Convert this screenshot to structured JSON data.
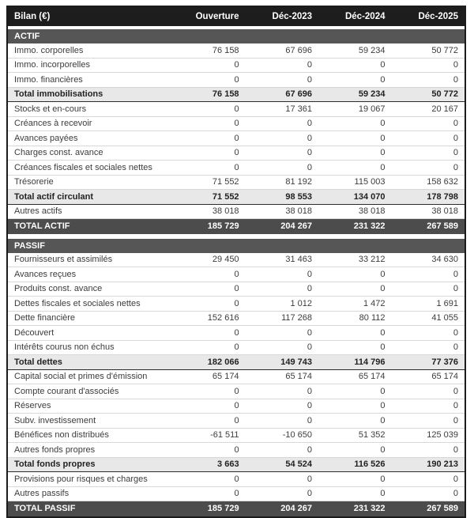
{
  "table": {
    "header": {
      "label": "Bilan (€)",
      "columns": [
        "Ouverture",
        "Déc-2023",
        "Déc-2024",
        "Déc-2025"
      ]
    },
    "sections": [
      {
        "title": "ACTIF",
        "rows": [
          {
            "label": "Immo. corporelles",
            "style": "normal",
            "values": [
              "76 158",
              "67 696",
              "59 234",
              "50 772"
            ]
          },
          {
            "label": "Immo. incorporelles",
            "style": "normal",
            "values": [
              "0",
              "0",
              "0",
              "0"
            ]
          },
          {
            "label": "Immo. financières",
            "style": "normal",
            "values": [
              "0",
              "0",
              "0",
              "0"
            ]
          },
          {
            "label": "Total immobilisations",
            "style": "subtotal",
            "values": [
              "76 158",
              "67 696",
              "59 234",
              "50 772"
            ]
          },
          {
            "label": "Stocks et en-cours",
            "style": "normal",
            "values": [
              "0",
              "17 361",
              "19 067",
              "20 167"
            ]
          },
          {
            "label": "Créances à recevoir",
            "style": "normal",
            "values": [
              "0",
              "0",
              "0",
              "0"
            ]
          },
          {
            "label": "Avances payées",
            "style": "normal",
            "values": [
              "0",
              "0",
              "0",
              "0"
            ]
          },
          {
            "label": "Charges const. avance",
            "style": "normal",
            "values": [
              "0",
              "0",
              "0",
              "0"
            ]
          },
          {
            "label": "Créances fiscales et sociales nettes",
            "style": "normal",
            "values": [
              "0",
              "0",
              "0",
              "0"
            ]
          },
          {
            "label": "Trésorerie",
            "style": "normal",
            "values": [
              "71 552",
              "81 192",
              "115 003",
              "158 632"
            ]
          },
          {
            "label": "Total actif circulant",
            "style": "subtotal",
            "values": [
              "71 552",
              "98 553",
              "134 070",
              "178 798"
            ]
          },
          {
            "label": "Autres actifs",
            "style": "normal",
            "values": [
              "38 018",
              "38 018",
              "38 018",
              "38 018"
            ]
          },
          {
            "label": "TOTAL ACTIF",
            "style": "total",
            "values": [
              "185 729",
              "204 267",
              "231 322",
              "267 589"
            ]
          }
        ]
      },
      {
        "title": "PASSIF",
        "rows": [
          {
            "label": "Fournisseurs et assimilés",
            "style": "normal",
            "values": [
              "29 450",
              "31 463",
              "33 212",
              "34 630"
            ]
          },
          {
            "label": "Avances reçues",
            "style": "normal",
            "values": [
              "0",
              "0",
              "0",
              "0"
            ]
          },
          {
            "label": "Produits const. avance",
            "style": "normal",
            "values": [
              "0",
              "0",
              "0",
              "0"
            ]
          },
          {
            "label": "Dettes fiscales et sociales nettes",
            "style": "normal",
            "values": [
              "0",
              "1 012",
              "1 472",
              "1 691"
            ]
          },
          {
            "label": "Dette financière",
            "style": "normal",
            "values": [
              "152 616",
              "117 268",
              "80 112",
              "41 055"
            ]
          },
          {
            "label": "Découvert",
            "style": "normal",
            "values": [
              "0",
              "0",
              "0",
              "0"
            ]
          },
          {
            "label": "Intérêts courus non échus",
            "style": "normal",
            "values": [
              "0",
              "0",
              "0",
              "0"
            ]
          },
          {
            "label": "Total dettes",
            "style": "subtotal",
            "values": [
              "182 066",
              "149 743",
              "114 796",
              "77 376"
            ]
          },
          {
            "label": "Capital social et primes d'émission",
            "style": "normal",
            "values": [
              "65 174",
              "65 174",
              "65 174",
              "65 174"
            ]
          },
          {
            "label": "Compte courant d'associés",
            "style": "normal",
            "values": [
              "0",
              "0",
              "0",
              "0"
            ]
          },
          {
            "label": "Réserves",
            "style": "normal",
            "values": [
              "0",
              "0",
              "0",
              "0"
            ]
          },
          {
            "label": "Subv. investissement",
            "style": "normal",
            "values": [
              "0",
              "0",
              "0",
              "0"
            ]
          },
          {
            "label": "Bénéfices non distribués",
            "style": "normal",
            "values": [
              "-61 511",
              "-10 650",
              "51 352",
              "125 039"
            ]
          },
          {
            "label": "Autres fonds propres",
            "style": "normal",
            "values": [
              "0",
              "0",
              "0",
              "0"
            ]
          },
          {
            "label": "Total fonds propres",
            "style": "subtotal",
            "values": [
              "3 663",
              "54 524",
              "116 526",
              "190 213"
            ]
          },
          {
            "label": "Provisions pour risques et charges",
            "style": "normal",
            "values": [
              "0",
              "0",
              "0",
              "0"
            ]
          },
          {
            "label": "Autres passifs",
            "style": "normal",
            "values": [
              "0",
              "0",
              "0",
              "0"
            ]
          },
          {
            "label": "TOTAL PASSIF",
            "style": "total",
            "values": [
              "185 729",
              "204 267",
              "231 322",
              "267 589"
            ]
          }
        ]
      }
    ]
  },
  "colors": {
    "header_bg": "#1d1d1d",
    "section_bg": "#565656",
    "subtotal_bg": "#e8e8e8",
    "total_bg": "#4c4c4c",
    "row_line": "#d8d8d8",
    "outer_border": "#1b1b1b",
    "text": "#3c3c3c"
  }
}
